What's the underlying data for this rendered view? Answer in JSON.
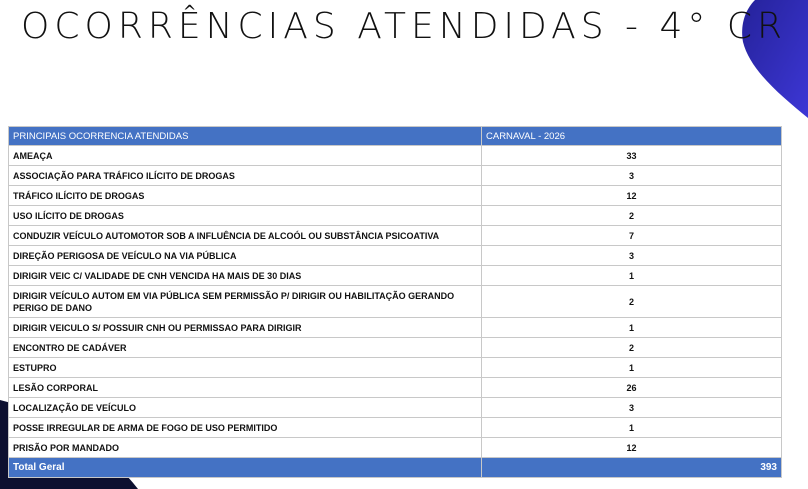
{
  "title": "OCORRÊNCIAS ATENDIDAS - 4° CR",
  "colors": {
    "header": "#4472c4",
    "accent_shape": "#3a32c8",
    "dark_shape": "#0d1030"
  },
  "table": {
    "headers": [
      "PRINCIPAIS OCORRENCIA ATENDIDAS",
      "CARNAVAL - 2026"
    ],
    "rows": [
      {
        "label": "AMEAÇA",
        "value": "33"
      },
      {
        "label": "ASSOCIAÇÃO PARA TRÁFICO ILÍCITO DE DROGAS",
        "value": "3"
      },
      {
        "label": "TRÁFICO ILÍCITO DE DROGAS",
        "value": "12"
      },
      {
        "label": "USO ILÍCITO DE DROGAS",
        "value": "2"
      },
      {
        "label": "CONDUZIR VEÍCULO AUTOMOTOR SOB A INFLUÊNCIA DE ALCOÓL OU SUBSTÂNCIA PSICOATIVA",
        "value": "7"
      },
      {
        "label": "DIREÇÃO PERIGOSA DE VEÍCULO NA VIA PÚBLICA",
        "value": "3"
      },
      {
        "label": "DIRIGIR VEIC C/ VALIDADE DE CNH VENCIDA HA MAIS DE 30 DIAS",
        "value": "1"
      },
      {
        "label": "DIRIGIR VEÍCULO AUTOM EM VIA PÚBLICA SEM PERMISSÃO P/ DIRIGIR OU HABILITAÇÃO GERANDO PERIGO DE DANO",
        "value": "2"
      },
      {
        "label": "DIRIGIR VEICULO S/ POSSUIR CNH OU PERMISSAO PARA DIRIGIR",
        "value": "1"
      },
      {
        "label": "ENCONTRO DE CADÁVER",
        "value": "2"
      },
      {
        "label": "ESTUPRO",
        "value": "1"
      },
      {
        "label": "LESÃO CORPORAL",
        "value": "26"
      },
      {
        "label": "LOCALIZAÇÃO DE VEÍCULO",
        "value": "3"
      },
      {
        "label": "POSSE IRREGULAR DE ARMA DE FOGO DE USO PERMITIDO",
        "value": "1"
      },
      {
        "label": "PRISÃO POR MANDADO",
        "value": "12"
      }
    ],
    "total": {
      "label": "Total Geral",
      "value": "393"
    }
  }
}
